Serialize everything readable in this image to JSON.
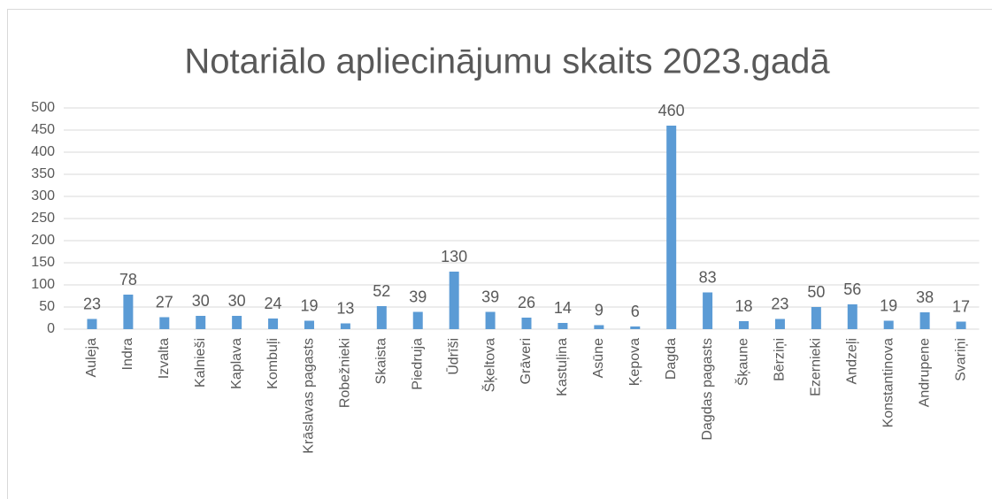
{
  "chart_data": {
    "type": "bar",
    "title": "Notariālo apliecinājumu skaits 2023.gadā",
    "categories": [
      "Auleja",
      "Indra",
      "Izvalta",
      "Kalnieši",
      "Kaplava",
      "Kombuļi",
      "Krāslavas pagasts",
      "Robežnieki",
      "Skaista",
      "Piedruja",
      "Ūdrīši",
      "Šķeltova",
      "Grāveri",
      "Kastuļina",
      "Asūne",
      "Ķepova",
      "Dagda",
      "Dagdas pagasts",
      "Šķaune",
      "Bērziņi",
      "Ezernieki",
      "Andzeļi",
      "Konstantinova",
      "Andrupene",
      "Svariņi"
    ],
    "values": [
      23,
      78,
      27,
      30,
      30,
      24,
      19,
      13,
      52,
      39,
      130,
      39,
      26,
      14,
      9,
      6,
      460,
      83,
      18,
      23,
      50,
      56,
      19,
      38,
      17
    ],
    "color": "#5b9bd5",
    "ylim": [
      0,
      500
    ],
    "yticks": [
      0,
      50,
      100,
      150,
      200,
      250,
      300,
      350,
      400,
      450,
      500
    ],
    "grid": true
  }
}
